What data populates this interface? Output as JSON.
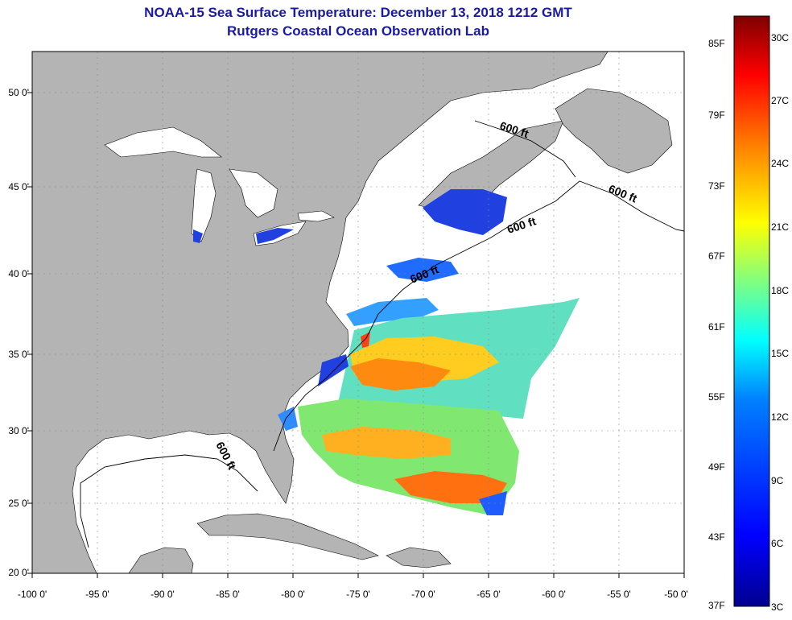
{
  "header": {
    "title": "NOAA-15 Sea Surface Temperature:  December 13, 2018 1212 GMT",
    "subtitle": "Rutgers Coastal Ocean Observation Lab"
  },
  "map": {
    "lat_labels": [
      "50 0'",
      "45 0'",
      "40 0'",
      "35 0'",
      "30 0'",
      "25 0'",
      "20 0'"
    ],
    "lon_labels": [
      "-100 0'",
      "-95 0'",
      "-90 0'",
      "-85 0'",
      "-80 0'",
      "-75 0'",
      "-70 0'",
      "-65 0'",
      "-60 0'",
      "-55 0'",
      "-50 0'"
    ],
    "isobath_labels": [
      "600 ft",
      "600 ft",
      "600 ft",
      "600 ft",
      "600 ft"
    ],
    "colors": {
      "land": "#b4b4b4",
      "ocean": "#ffffff",
      "title": "#1a1aa6"
    }
  },
  "colorbar": {
    "fahrenheit": [
      "85F",
      "79F",
      "73F",
      "67F",
      "61F",
      "55F",
      "49F",
      "43F",
      "37F"
    ],
    "celsius": [
      "30C",
      "27C",
      "24C",
      "21C",
      "18C",
      "15C",
      "12C",
      "9C",
      "6C",
      "3C"
    ],
    "colors": [
      "#7f0000",
      "#ff0000",
      "#ff8000",
      "#ffff00",
      "#80ff80",
      "#00ffff",
      "#0080ff",
      "#0000ff",
      "#00008f"
    ]
  }
}
